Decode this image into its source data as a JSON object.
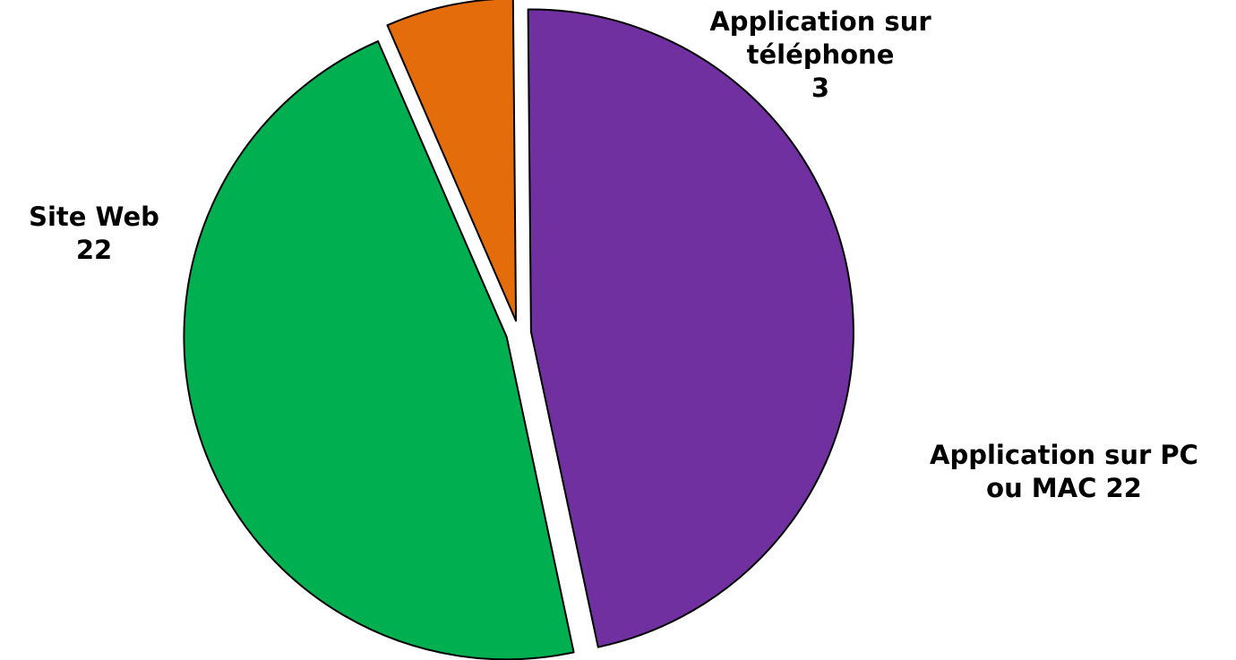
{
  "chart_data": {
    "type": "pie",
    "title": "",
    "exploded": true,
    "slices": [
      {
        "label": "Application sur téléphone",
        "value": 3,
        "color": "#E46C0A",
        "data_label": "Application sur\ntéléphone\n3"
      },
      {
        "label": "Application sur PC ou MAC",
        "value": 22,
        "color": "#7030A0",
        "data_label": "Application sur PC\nou MAC 22"
      },
      {
        "label": "Site Web",
        "value": 22,
        "color": "#00B050",
        "data_label": "Site Web\n22"
      }
    ],
    "outline_color": "#000000",
    "legend": "none"
  }
}
